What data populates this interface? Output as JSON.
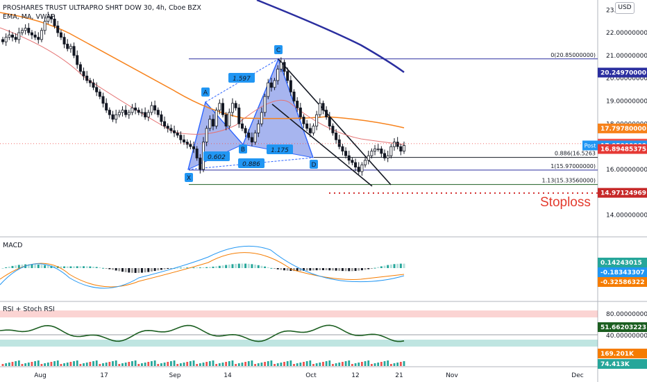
{
  "header": {
    "title": "PROSHARES TRUST ULTRAPRO SHRT DOW 30, 4h, Cboe BZX",
    "indicator": "EMA, MA, VWAP",
    "currency": "USD"
  },
  "price_axis": {
    "ticks": [
      "23.0",
      "22.00000000",
      "21.00000000",
      "20.00000000",
      "19.00000000",
      "18.00000000",
      "17.00000000",
      "16.00000000",
      "15.00000000",
      "14.00000000"
    ],
    "tags": [
      {
        "value": "20.24970000",
        "color": "#2a2e9f"
      },
      {
        "value": "17.79780000",
        "color": "#f7821b"
      },
      {
        "value": "17.13000000",
        "color": "#ef5350"
      },
      {
        "value": "17.05000000",
        "color": "#2196f3"
      },
      {
        "value": "16.89485375",
        "color": "#e53935"
      },
      {
        "value": "14.97124969",
        "color": "#c62828"
      }
    ],
    "post_label": "Post"
  },
  "time_axis": [
    "Aug",
    "17",
    "Sep",
    "14",
    "Oct",
    "12",
    "21",
    "Nov",
    "Dec"
  ],
  "harmonic": {
    "points": [
      "X",
      "A",
      "B",
      "C",
      "D"
    ],
    "ratios": [
      "1.597",
      "0.602",
      "0.886",
      "1.175"
    ]
  },
  "fib_levels": [
    {
      "label": "0(20.85000000)",
      "value": 20.85
    },
    {
      "label": "0.886(16.5263",
      "value": 16.5263
    },
    {
      "label": "1(15.97000000)",
      "value": 15.97
    },
    {
      "label": "1.13(15.33560000)",
      "value": 15.3356
    }
  ],
  "stoploss_label": "Stoploss",
  "macd": {
    "title": "MACD",
    "tags": [
      {
        "value": "0.14243015",
        "color": "#26a69a"
      },
      {
        "value": "-0.18343307",
        "color": "#2196f3"
      },
      {
        "value": "-0.32586322",
        "color": "#f57c00"
      }
    ]
  },
  "rsi": {
    "title": "RSI + Stoch RSI",
    "ticks": [
      "80.00000000",
      "40.00000000"
    ],
    "tags": [
      {
        "value": "51.66203223",
        "color": "#1b5e20"
      },
      {
        "value": "169.201K",
        "color": "#f57c00"
      },
      {
        "value": "74.413K",
        "color": "#26a69a"
      }
    ]
  },
  "chart_data": {
    "type": "candlestick",
    "title": "PROSHARES TRUST ULTRAPRO SHRT DOW 30, 4h, Cboe BZX",
    "ylim": [
      13.5,
      23.2
    ],
    "close": [
      21.6,
      21.8,
      21.9,
      21.8,
      21.7,
      22.0,
      22.1,
      22.2,
      22.0,
      21.9,
      21.8,
      21.7,
      22.1,
      22.5,
      22.7,
      22.6,
      22.3,
      22.0,
      21.8,
      21.5,
      21.3,
      21.4,
      21.0,
      20.6,
      20.3,
      20.1,
      19.9,
      19.8,
      19.6,
      19.4,
      19.2,
      18.9,
      18.6,
      18.4,
      18.2,
      18.4,
      18.5,
      18.6,
      18.4,
      18.5,
      18.7,
      18.6,
      18.5,
      18.5,
      18.3,
      18.5,
      18.8,
      18.6,
      18.4,
      18.1,
      17.9,
      17.8,
      17.7,
      17.6,
      17.5,
      17.3,
      17.2,
      17.1,
      17.0,
      16.9,
      16.5,
      16.0,
      17.2,
      17.8,
      18.2,
      17.9,
      18.6,
      18.9,
      18.4,
      17.9,
      18.5,
      18.9,
      18.7,
      18.0,
      17.8,
      17.6,
      17.4,
      17.2,
      17.6,
      18.0,
      18.5,
      19.2,
      19.8,
      19.6,
      19.9,
      20.4,
      20.7,
      20.3,
      19.9,
      19.4,
      19.0,
      18.7,
      18.3,
      18.0,
      17.8,
      17.6,
      17.9,
      18.4,
      18.9,
      18.6,
      18.3,
      17.9,
      17.6,
      17.3,
      17.0,
      16.8,
      16.6,
      16.4,
      16.3,
      16.1,
      15.9,
      16.2,
      16.4,
      16.6,
      16.8,
      16.9,
      16.9,
      16.7,
      16.5,
      16.6,
      17.0,
      17.2,
      17.0,
      16.8,
      17.05
    ]
  }
}
